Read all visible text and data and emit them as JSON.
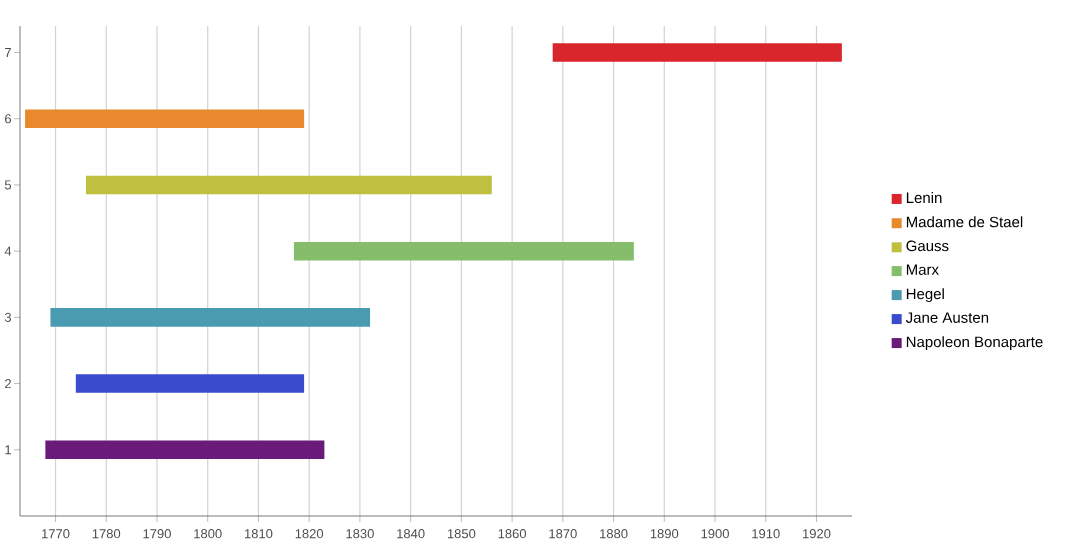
{
  "chart_data": {
    "type": "bar",
    "orientation": "horizontal",
    "categories": [
      "7",
      "6",
      "5",
      "4",
      "3",
      "2",
      "1"
    ],
    "series": [
      {
        "name": "Lenin",
        "color": "#d8262c",
        "values": [
          57,
          null,
          null,
          null,
          null,
          null,
          null
        ],
        "base": [
          1868,
          null,
          null,
          null,
          null,
          null,
          null
        ]
      },
      {
        "name": "Madame de Stael",
        "color": "#e8892e",
        "values": [
          null,
          55,
          null,
          null,
          null,
          null,
          null
        ],
        "base": [
          null,
          1764,
          null,
          null,
          null,
          null,
          null
        ]
      },
      {
        "name": "Gauss",
        "color": "#bfc040",
        "values": [
          null,
          null,
          80,
          null,
          null,
          null,
          null
        ],
        "base": [
          null,
          null,
          1776,
          null,
          null,
          null,
          null
        ]
      },
      {
        "name": "Marx",
        "color": "#85bd6a",
        "values": [
          null,
          null,
          null,
          67,
          null,
          null,
          null
        ],
        "base": [
          null,
          null,
          null,
          1817,
          null,
          null,
          null
        ]
      },
      {
        "name": "Hegel",
        "color": "#4a9ab0",
        "values": [
          null,
          null,
          null,
          null,
          63,
          null,
          null
        ],
        "base": [
          null,
          null,
          null,
          null,
          1769,
          null,
          null
        ]
      },
      {
        "name": "Jane Austen",
        "color": "#3a4ccc",
        "values": [
          null,
          null,
          null,
          null,
          null,
          45,
          null
        ],
        "base": [
          null,
          null,
          null,
          null,
          null,
          1774,
          null
        ]
      },
      {
        "name": "Napoleon Bonaparte",
        "color": "#6a1b7a",
        "values": [
          null,
          null,
          null,
          null,
          null,
          null,
          55
        ],
        "base": [
          null,
          null,
          null,
          null,
          null,
          null,
          1768
        ]
      }
    ],
    "xlim": [
      1763,
      1927
    ],
    "xticks": [
      1770,
      1780,
      1790,
      1800,
      1810,
      1820,
      1830,
      1840,
      1850,
      1860,
      1870,
      1880,
      1890,
      1900,
      1910,
      1920
    ],
    "grid": "x",
    "legend": "right"
  }
}
